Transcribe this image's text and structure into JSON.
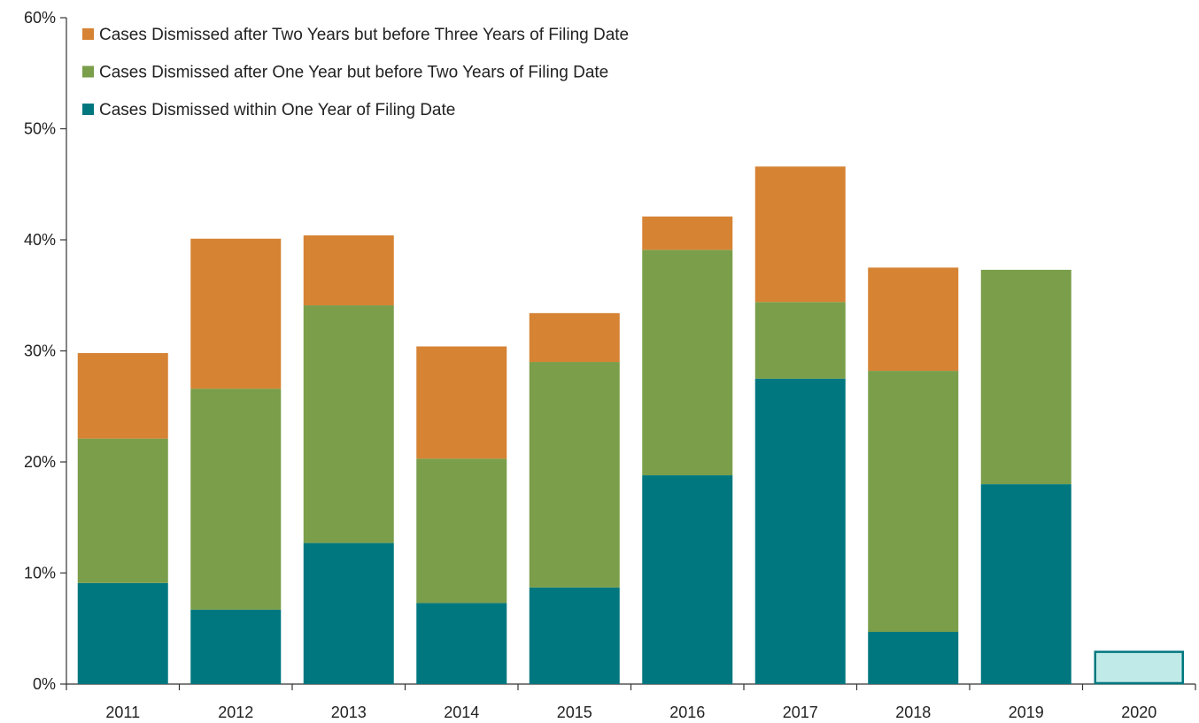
{
  "chart_data": {
    "type": "bar",
    "stacked": true,
    "title": "",
    "xlabel": "",
    "ylabel": "",
    "ylim": [
      0,
      60
    ],
    "y_ticks": [
      "0%",
      "10%",
      "20%",
      "30%",
      "40%",
      "50%",
      "60%"
    ],
    "grid": false,
    "legend_position": "top-left",
    "categories": [
      "2011",
      "2012",
      "2013",
      "2014",
      "2015",
      "2016",
      "2017",
      "2018",
      "2019",
      "2020"
    ],
    "series": [
      {
        "name": "Cases Dismissed within One Year of Filing Date",
        "color": "#00777f",
        "values": [
          9.1,
          6.7,
          12.7,
          7.3,
          8.7,
          18.8,
          27.5,
          4.7,
          18.0,
          0
        ]
      },
      {
        "name": "Cases Dismissed after One Year but before Two Years of Filing Date",
        "color": "#7a9e4a",
        "values": [
          13.0,
          19.9,
          21.4,
          13.0,
          20.3,
          20.3,
          6.9,
          23.5,
          19.3,
          0
        ]
      },
      {
        "name": "Cases Dismissed after Two Years but before Three Years of Filing Date",
        "color": "#d68334",
        "values": [
          7.7,
          13.5,
          6.3,
          10.1,
          4.4,
          3.0,
          12.2,
          9.3,
          0,
          0
        ]
      }
    ],
    "partial_year": {
      "category": "2020",
      "value": 2.9,
      "fill": "#c0eae8",
      "stroke": "#00777f"
    }
  }
}
